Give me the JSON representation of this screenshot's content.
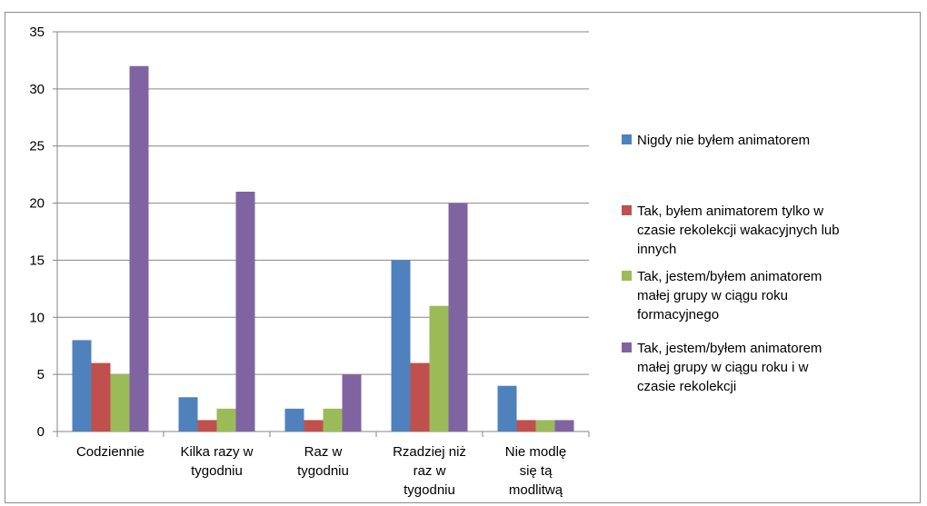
{
  "chart_data": {
    "type": "bar",
    "categories": [
      [
        "Codziennie"
      ],
      [
        "Kilka razy w",
        "tygodniu"
      ],
      [
        "Raz w",
        "tygodniu"
      ],
      [
        "Rzadziej niż",
        "raz w",
        "tygodniu"
      ],
      [
        "Nie modlę",
        "się tą",
        "modlitwą"
      ]
    ],
    "series": [
      {
        "name": [
          "Nigdy nie byłem animatorem"
        ],
        "color": "#4F81BD",
        "values": [
          8,
          3,
          2,
          15,
          4
        ]
      },
      {
        "name": [
          "Tak, byłem animatorem tylko w",
          "czasie rekolekcji wakacyjnych lub",
          "innych"
        ],
        "color": "#C0504D",
        "values": [
          6,
          1,
          1,
          6,
          1
        ]
      },
      {
        "name": [
          "Tak, jestem/byłem animatorem",
          "małej grupy w ciągu roku",
          "formacyjnego"
        ],
        "color": "#9BBB59",
        "values": [
          5,
          2,
          2,
          11,
          1
        ]
      },
      {
        "name": [
          "Tak, jestem/byłem animatorem",
          "małej grupy w ciągu roku i w",
          "czasie rekolekcji"
        ],
        "color": "#8064A2",
        "values": [
          32,
          21,
          5,
          20,
          1
        ]
      }
    ],
    "yticks": [
      "0",
      "5",
      "10",
      "15",
      "20",
      "25",
      "30",
      "35"
    ],
    "ylim": [
      0,
      35
    ],
    "grid": true,
    "legend_position": "right"
  }
}
